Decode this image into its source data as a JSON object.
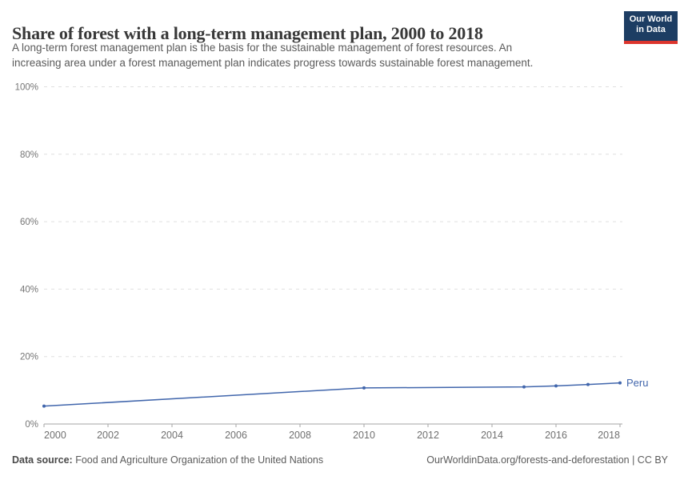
{
  "header": {
    "title": "Share of forest with a long-term management plan, 2000 to 2018",
    "subtitle_lines": [
      "A long-term forest management plan is the basis for the sustainable management of forest resources. An",
      "increasing area under a forest management plan indicates progress towards sustainable forest management."
    ]
  },
  "logo": {
    "line1": "Our World",
    "line2": "in Data",
    "bg_color": "#1d3d63",
    "bar_color": "#dc352d"
  },
  "chart_data": {
    "type": "line",
    "title": "Share of forest with a long-term management plan, 2000 to 2018",
    "xlabel": "",
    "ylabel": "",
    "xlim": [
      2000,
      2018
    ],
    "ylim": [
      0,
      100
    ],
    "grid": "horizontal-dashed",
    "legend_position": "end-of-line-label",
    "x_ticks": [
      2000,
      2002,
      2004,
      2006,
      2008,
      2010,
      2012,
      2014,
      2016,
      2018
    ],
    "y_ticks": [
      0,
      20,
      40,
      60,
      80,
      100
    ],
    "y_tick_suffix": "%",
    "series": [
      {
        "name": "Peru",
        "end_label": "Peru",
        "color": "#4166ac",
        "x": [
          2000,
          2010,
          2015,
          2016,
          2017,
          2018
        ],
        "y": [
          5.3,
          10.7,
          11.0,
          11.3,
          11.7,
          12.2
        ]
      }
    ]
  },
  "footer": {
    "source_label": "Data source:",
    "source_text": " Food and Agriculture Organization of the United Nations",
    "attribution": "OurWorldinData.org/forests-and-deforestation | CC BY"
  },
  "colors": {
    "title": "#383838",
    "subtitle": "#5a5a5a",
    "tick_label": "#757575",
    "gridline": "#dfdfdf",
    "axis_line": "#a5a5a5",
    "series_line": "#4166ac"
  }
}
